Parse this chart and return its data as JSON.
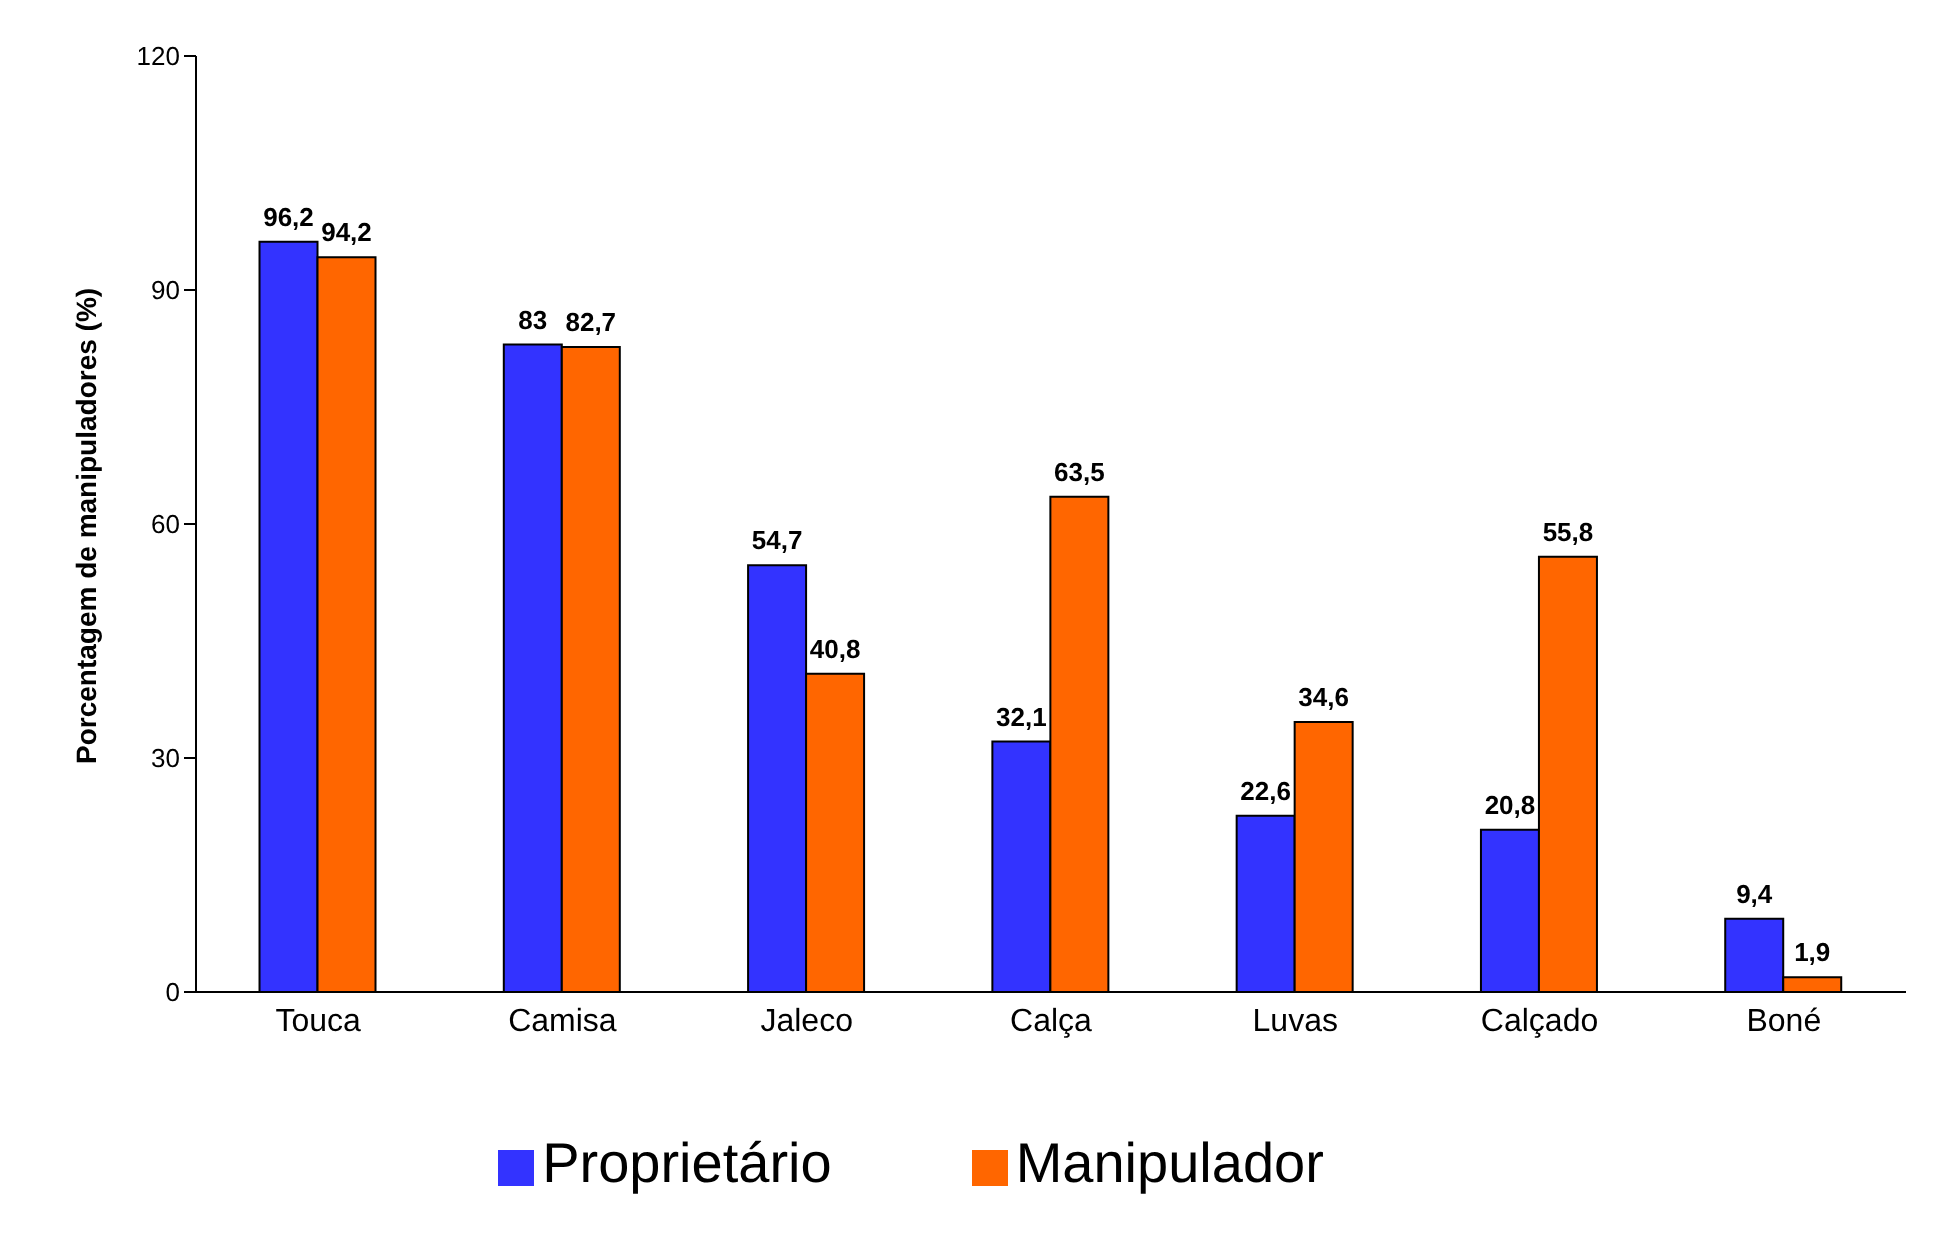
{
  "chart_data": {
    "type": "bar",
    "ylabel": "Porcentagem de manipuladores (%)",
    "categories": [
      "Touca",
      "Camisa",
      "Jaleco",
      "Calça",
      "Luvas",
      "Calçado",
      "Boné"
    ],
    "series": [
      {
        "name": "Proprietário",
        "color": "#3333ff",
        "values": [
          96.2,
          83,
          54.7,
          32.1,
          22.6,
          20.8,
          9.4
        ],
        "value_labels": [
          "96,2",
          "83",
          "54,7",
          "32,1",
          "22,6",
          "20,8",
          "9,4"
        ]
      },
      {
        "name": "Manipulador",
        "color": "#ff6600",
        "values": [
          94.2,
          82.7,
          40.8,
          63.5,
          34.6,
          55.8,
          1.9
        ],
        "value_labels": [
          "94,2",
          "82,7",
          "40,8",
          "63,5",
          "34,6",
          "55,8",
          "1,9"
        ]
      }
    ],
    "ylim": [
      0,
      120
    ],
    "yticks": [
      0,
      30,
      60,
      90,
      120
    ],
    "grid": false,
    "legend": "bottom"
  }
}
